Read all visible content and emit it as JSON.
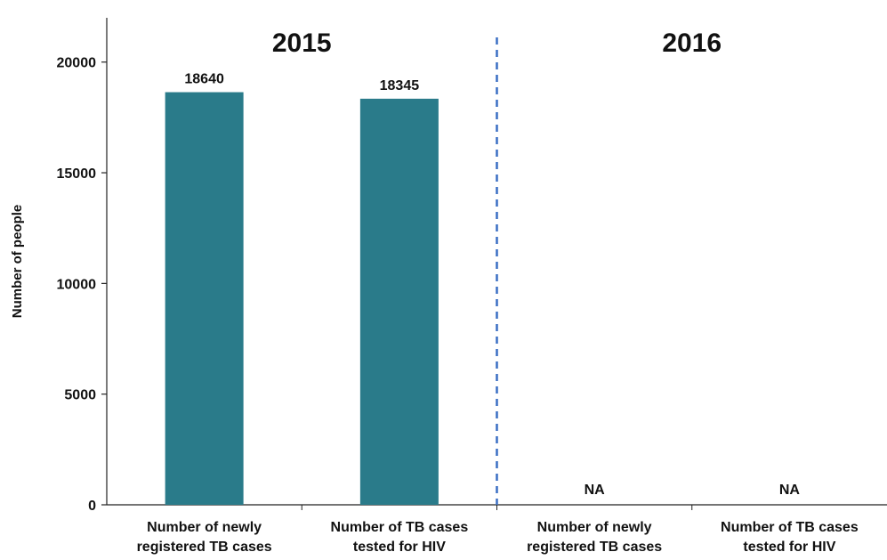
{
  "chart_data": {
    "type": "bar",
    "ylabel": "Number of people",
    "ylim": [
      0,
      22000
    ],
    "yticks": [
      0,
      5000,
      10000,
      15000,
      20000
    ],
    "groups": [
      {
        "title": "2015",
        "categories": [
          [
            "Number of newly",
            "registered TB cases"
          ],
          [
            "Number of TB cases",
            "tested for HIV"
          ]
        ],
        "values": [
          18640,
          18345
        ],
        "labels": [
          "18640",
          "18345"
        ]
      },
      {
        "title": "2016",
        "categories": [
          [
            "Number of newly",
            "registered TB cases"
          ],
          [
            "Number of TB cases",
            "tested for HIV"
          ]
        ],
        "values": [
          null,
          null
        ],
        "labels": [
          "NA",
          "NA"
        ]
      }
    ],
    "bar_color": "#2a7b8a",
    "separator_color": "#3a6fc4",
    "separator_style": "dashed",
    "grid": false,
    "legend": "none"
  }
}
